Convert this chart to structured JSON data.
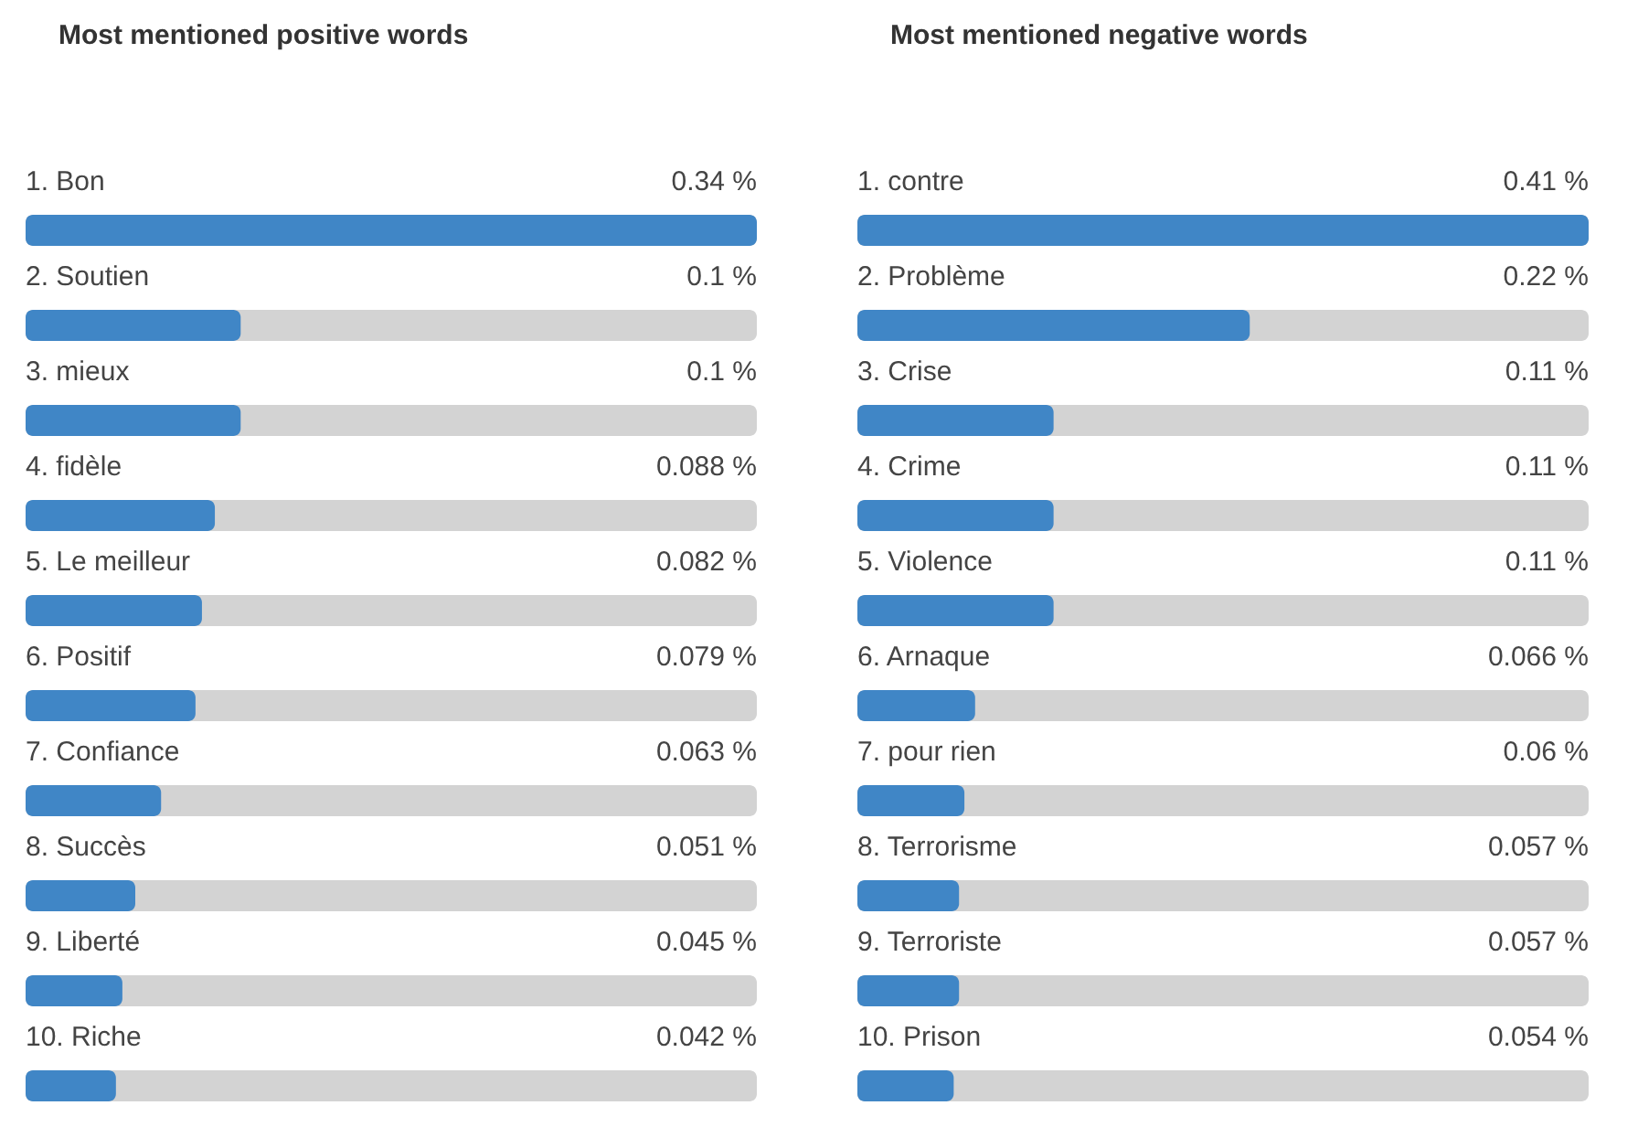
{
  "chart_data": [
    {
      "type": "bar",
      "orientation": "horizontal",
      "title": "Most mentioned positive words",
      "color": "#4086c6",
      "categories": [
        "1. Bon",
        "2. Soutien",
        "3. mieux",
        "4. fidèle",
        "5. Le meilleur",
        "6. Positif",
        "7. Confiance",
        "8. Succès",
        "9. Liberté",
        "10. Riche"
      ],
      "values": [
        0.34,
        0.1,
        0.1,
        0.088,
        0.082,
        0.079,
        0.063,
        0.051,
        0.045,
        0.042
      ],
      "value_labels": [
        "0.34 %",
        "0.1 %",
        "0.1 %",
        "0.088 %",
        "0.082 %",
        "0.079 %",
        "0.063 %",
        "0.051 %",
        "0.045 %",
        "0.042 %"
      ]
    },
    {
      "type": "bar",
      "orientation": "horizontal",
      "title": "Most mentioned negative words",
      "color": "#4086c6",
      "categories": [
        "1. contre",
        "2. Problème",
        "3. Crise",
        "4. Crime",
        "5. Violence",
        "6. Arnaque",
        "7. pour rien",
        "8. Terrorisme",
        "9. Terroriste",
        "10. Prison"
      ],
      "values": [
        0.41,
        0.22,
        0.11,
        0.11,
        0.11,
        0.066,
        0.06,
        0.057,
        0.057,
        0.054
      ],
      "value_labels": [
        "0.41 %",
        "0.22 %",
        "0.11 %",
        "0.11 %",
        "0.11 %",
        "0.066 %",
        "0.06 %",
        "0.057 %",
        "0.057 %",
        "0.054 %"
      ]
    }
  ]
}
